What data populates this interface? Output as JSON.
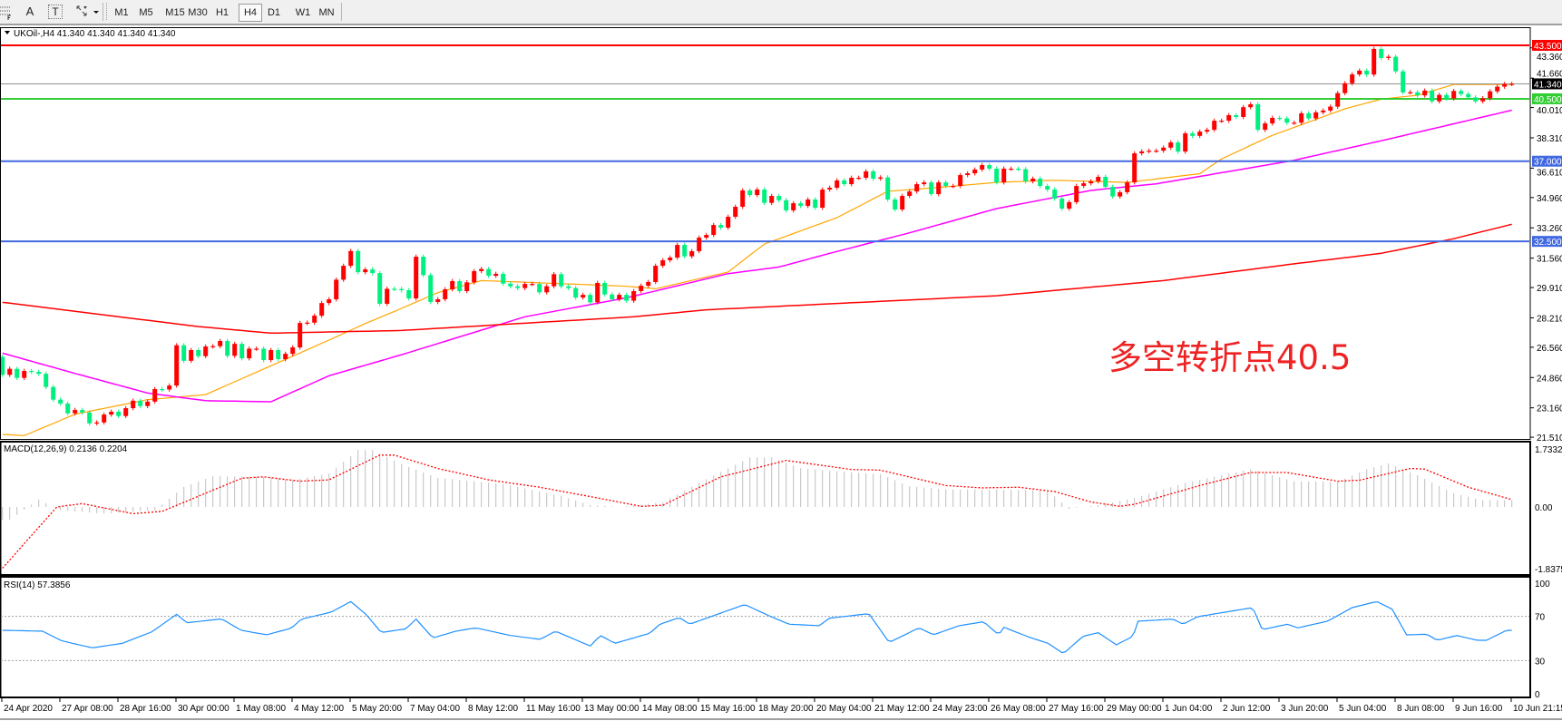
{
  "toolbar": {
    "icons": [
      "fibonacci-icon",
      "text-a-icon",
      "text-label-icon",
      "arrows-icon",
      "dropdown-icon"
    ],
    "text_a": "A",
    "text_t": "T",
    "timeframes": [
      "M1",
      "M5",
      "M15",
      "M30",
      "H1",
      "H4",
      "D1",
      "W1",
      "MN"
    ],
    "active_timeframe": "H4"
  },
  "chart": {
    "title": "UKOil-,H4  41.340 41.340 41.340 41.340",
    "price_ticks": [
      "43.360",
      "41.660",
      "40.010",
      "38.310",
      "36.610",
      "34.960",
      "33.260",
      "31.560",
      "29.910",
      "28.210",
      "26.560",
      "24.860",
      "23.160",
      "21.510"
    ],
    "time_labels": [
      "24 Apr 2020",
      "27 Apr 08:00",
      "28 Apr 16:00",
      "30 Apr 00:00",
      "1 May 08:00",
      "4 May 12:00",
      "5 May 20:00",
      "7 May 04:00",
      "8 May 12:00",
      "11 May 16:00",
      "13 May 00:00",
      "14 May 08:00",
      "15 May 16:00",
      "18 May 20:00",
      "20 May 04:00",
      "21 May 12:00",
      "24 May 23:00",
      "26 May 08:00",
      "27 May 16:00",
      "29 May 00:00",
      "1 Jun 04:00",
      "2 Jun 12:00",
      "3 Jun 20:00",
      "5 Jun 04:00",
      "8 Jun 08:00",
      "9 Jun 16:00",
      "10 Jun 21:15"
    ],
    "annotation": "多空转折点40.5",
    "annotation_color": "#ee2222",
    "levels": [
      {
        "price": 43.5,
        "label": "43.500",
        "color": "#ff0000"
      },
      {
        "price": 41.34,
        "label": "41.340",
        "color": "#000000",
        "line_color": "#909090"
      },
      {
        "price": 40.5,
        "label": "40.500",
        "color": "#32cd32"
      },
      {
        "price": 37.0,
        "label": "37.000",
        "color": "#4169e1"
      },
      {
        "price": 32.5,
        "label": "32.500",
        "color": "#4169e1"
      }
    ],
    "up_color": "#ff0000",
    "down_color": "#00f080"
  },
  "macd": {
    "label": "MACD(12,26,9) 0.2136 0.2204",
    "ticks": [
      "1.7332",
      "0.00",
      "-1.8375"
    ]
  },
  "rsi": {
    "label": "RSI(14) 57.3856",
    "ticks": [
      "100",
      "70",
      "30",
      "0"
    ]
  },
  "chart_data": [
    {
      "type": "candlestick",
      "symbol": "UKOil-",
      "timeframe": "H4",
      "ylim": [
        21.51,
        43.5
      ],
      "first_open": 26.02,
      "closes": [
        25.01,
        25.35,
        24.84,
        25.23,
        25.18,
        25.07,
        24.33,
        23.62,
        23.4,
        22.85,
        23.04,
        22.9,
        22.29,
        22.34,
        22.78,
        22.94,
        22.7,
        23.14,
        23.56,
        23.26,
        23.51,
        24.21,
        24.19,
        24.41,
        26.67,
        25.8,
        26.4,
        26.06,
        26.6,
        26.62,
        26.91,
        26.08,
        26.75,
        25.94,
        26.48,
        26.48,
        25.84,
        26.4,
        25.89,
        26.19,
        26.55,
        27.92,
        27.94,
        28.33,
        29.04,
        29.25,
        30.35,
        31.13,
        31.96,
        30.77,
        30.93,
        30.72,
        29.0,
        29.84,
        29.83,
        29.76,
        29.3,
        31.64,
        30.61,
        29.1,
        29.25,
        29.81,
        30.27,
        29.71,
        30.2,
        30.83,
        30.95,
        30.57,
        30.68,
        30.13,
        29.98,
        29.88,
        30.11,
        30.11,
        29.64,
        29.98,
        30.66,
        29.98,
        29.88,
        29.35,
        29.5,
        29.08,
        30.17,
        29.52,
        29.25,
        29.5,
        29.17,
        29.71,
        30.01,
        30.22,
        31.13,
        31.44,
        31.59,
        32.3,
        31.66,
        31.95,
        32.71,
        32.86,
        33.42,
        33.27,
        33.88,
        34.44,
        35.36,
        35.1,
        35.41,
        34.66,
        35.05,
        34.81,
        34.24,
        34.64,
        34.49,
        34.85,
        34.39,
        35.41,
        35.51,
        35.92,
        35.71,
        36.07,
        36.07,
        36.43,
        36.02,
        36.09,
        34.85,
        34.29,
        35.05,
        35.3,
        35.71,
        35.81,
        35.15,
        35.81,
        35.61,
        35.61,
        36.22,
        36.32,
        36.53,
        36.78,
        36.58,
        35.81,
        36.58,
        36.58,
        36.55,
        35.87,
        36.02,
        35.61,
        35.41,
        34.9,
        34.34,
        34.7,
        35.61,
        35.76,
        35.87,
        36.12,
        35.56,
        35.02,
        35.26,
        35.81,
        37.44,
        37.55,
        37.59,
        37.59,
        37.76,
        38.05,
        37.54,
        38.56,
        38.42,
        38.66,
        38.76,
        39.27,
        39.27,
        39.58,
        39.48,
        40.03,
        40.19,
        38.76,
        39.12,
        39.43,
        39.4,
        39.16,
        39.16,
        39.69,
        39.4,
        39.74,
        39.84,
        40.06,
        40.82,
        41.37,
        41.87,
        42.08,
        41.86,
        43.3,
        42.79,
        42.86,
        42.04,
        40.86,
        40.87,
        40.69,
        40.96,
        40.36,
        40.72,
        40.52,
        40.94,
        40.77,
        40.58,
        40.36,
        40.53,
        40.92,
        41.18,
        41.33,
        41.34
      ],
      "moving_averages": [
        {
          "color": "#ffa500",
          "points": [
            [
              0,
              21.67
            ],
            [
              3,
              21.6
            ],
            [
              10,
              22.8
            ],
            [
              20,
              23.62
            ],
            [
              28,
              23.9
            ],
            [
              37,
              25.52
            ],
            [
              45,
              26.96
            ],
            [
              50,
              27.89
            ],
            [
              55,
              28.74
            ],
            [
              60,
              29.62
            ],
            [
              66,
              30.3
            ],
            [
              80,
              30.08
            ],
            [
              86,
              29.98
            ],
            [
              90,
              29.84
            ],
            [
              100,
              30.78
            ],
            [
              105,
              32.35
            ],
            [
              115,
              33.83
            ],
            [
              122,
              35.31
            ],
            [
              130,
              35.56
            ],
            [
              137,
              35.81
            ],
            [
              145,
              35.93
            ],
            [
              155,
              35.81
            ],
            [
              159,
              36.0
            ],
            [
              165,
              36.3
            ],
            [
              168,
              37.13
            ],
            [
              175,
              38.45
            ],
            [
              185,
              39.94
            ],
            [
              190,
              40.48
            ],
            [
              195,
              40.7
            ],
            [
              200,
              41.3
            ],
            [
              208,
              41.3
            ]
          ]
        },
        {
          "color": "#ff00ff",
          "points": [
            [
              0,
              26.23
            ],
            [
              10,
              25.09
            ],
            [
              20,
              23.99
            ],
            [
              28,
              23.56
            ],
            [
              37,
              23.5
            ],
            [
              45,
              24.96
            ],
            [
              55,
              26.14
            ],
            [
              72,
              28.27
            ],
            [
              86,
              29.33
            ],
            [
              100,
              30.69
            ],
            [
              107,
              31.06
            ],
            [
              114,
              31.83
            ],
            [
              125,
              32.98
            ],
            [
              137,
              34.34
            ],
            [
              150,
              35.36
            ],
            [
              159,
              35.73
            ],
            [
              172,
              36.63
            ],
            [
              178,
              37.05
            ],
            [
              191,
              38.24
            ],
            [
              208,
              39.86
            ]
          ]
        },
        {
          "color": "#ff0000",
          "points": [
            [
              0,
              29.08
            ],
            [
              27,
              27.72
            ],
            [
              37,
              27.35
            ],
            [
              55,
              27.5
            ],
            [
              87,
              28.27
            ],
            [
              97,
              28.66
            ],
            [
              137,
              29.45
            ],
            [
              160,
              30.3
            ],
            [
              178,
              31.24
            ],
            [
              190,
              31.83
            ],
            [
              200,
              32.65
            ],
            [
              208,
              33.46
            ]
          ]
        }
      ]
    },
    {
      "type": "bar+line",
      "name": "MACD(12,26,9)",
      "ylim": [
        -1.8375,
        1.7332
      ],
      "histogram_points": [
        [
          1,
          -0.38
        ],
        [
          5,
          0.22
        ],
        [
          8,
          -0.1
        ],
        [
          14,
          -0.2
        ],
        [
          21,
          -0.1
        ],
        [
          25,
          0.6
        ],
        [
          29,
          0.92
        ],
        [
          36,
          0.9
        ],
        [
          40,
          0.8
        ],
        [
          45,
          1.0
        ],
        [
          49,
          1.7
        ],
        [
          51,
          1.7
        ],
        [
          55,
          1.28
        ],
        [
          60,
          0.87
        ],
        [
          69,
          0.69
        ],
        [
          77,
          0.33
        ],
        [
          81,
          0.06
        ],
        [
          85,
          0.0
        ],
        [
          91,
          0.14
        ],
        [
          96,
          0.72
        ],
        [
          103,
          1.48
        ],
        [
          106,
          1.48
        ],
        [
          110,
          1.16
        ],
        [
          115,
          1.07
        ],
        [
          121,
          0.98
        ],
        [
          125,
          0.62
        ],
        [
          130,
          0.53
        ],
        [
          144,
          0.5
        ],
        [
          147,
          -0.05
        ],
        [
          151,
          0.05
        ],
        [
          156,
          0.27
        ],
        [
          163,
          0.72
        ],
        [
          172,
          1.13
        ],
        [
          178,
          0.77
        ],
        [
          184,
          0.75
        ],
        [
          188,
          1.13
        ],
        [
          191,
          1.3
        ],
        [
          195,
          0.95
        ],
        [
          200,
          0.41
        ],
        [
          204,
          0.2
        ],
        [
          208,
          0.21
        ]
      ],
      "signal_points": [
        [
          0,
          -1.83
        ],
        [
          7.5,
          0
        ],
        [
          11,
          0.1
        ],
        [
          18,
          -0.2
        ],
        [
          22,
          -0.13
        ],
        [
          33,
          0.86
        ],
        [
          36,
          0.9
        ],
        [
          41,
          0.77
        ],
        [
          45,
          0.81
        ],
        [
          52,
          1.55
        ],
        [
          54,
          1.55
        ],
        [
          60,
          1.15
        ],
        [
          67,
          0.81
        ],
        [
          74,
          0.59
        ],
        [
          82,
          0.27
        ],
        [
          88,
          0.02
        ],
        [
          91,
          0.05
        ],
        [
          99,
          0.9
        ],
        [
          108,
          1.39
        ],
        [
          117,
          1.12
        ],
        [
          121,
          1.1
        ],
        [
          130,
          0.64
        ],
        [
          135,
          0.57
        ],
        [
          140,
          0.59
        ],
        [
          145,
          0.46
        ],
        [
          150,
          0.15
        ],
        [
          154,
          0.02
        ],
        [
          156,
          0.08
        ],
        [
          165,
          0.64
        ],
        [
          172,
          1.03
        ],
        [
          177,
          1.03
        ],
        [
          184,
          0.77
        ],
        [
          187,
          0.8
        ],
        [
          194,
          1.15
        ],
        [
          196,
          1.13
        ],
        [
          202,
          0.59
        ],
        [
          208,
          0.22
        ]
      ],
      "signal_color": "#ff0000",
      "histogram_color": "#c0c0c0"
    },
    {
      "type": "line",
      "name": "RSI(14)",
      "ylim": [
        0,
        100
      ],
      "levels": [
        70,
        30
      ],
      "color": "#1e90ff",
      "points": [
        [
          0,
          57.4
        ],
        [
          5.5,
          56.6
        ],
        [
          8.2,
          47.8
        ],
        [
          12.4,
          41.5
        ],
        [
          16.5,
          45.6
        ],
        [
          20.6,
          56
        ],
        [
          24,
          71.8
        ],
        [
          25.4,
          64.2
        ],
        [
          30.2,
          67.7
        ],
        [
          32.9,
          57.4
        ],
        [
          36.4,
          53.3
        ],
        [
          39.8,
          59.3
        ],
        [
          41.2,
          67.5
        ],
        [
          45.3,
          73.8
        ],
        [
          48,
          83.4
        ],
        [
          50.1,
          71.8
        ],
        [
          52.2,
          55.4
        ],
        [
          55.6,
          58.7
        ],
        [
          57,
          67.5
        ],
        [
          59.3,
          50.5
        ],
        [
          62.5,
          56.6
        ],
        [
          65.2,
          59.6
        ],
        [
          70,
          52.7
        ],
        [
          74.1,
          49.2
        ],
        [
          76.2,
          56.6
        ],
        [
          81,
          43.2
        ],
        [
          82.4,
          52.7
        ],
        [
          84.4,
          45.6
        ],
        [
          89.2,
          54.7
        ],
        [
          90.6,
          62.9
        ],
        [
          93.3,
          68.9
        ],
        [
          94.7,
          62.9
        ],
        [
          102.3,
          80.7
        ],
        [
          105.7,
          70.3
        ],
        [
          108.4,
          62.9
        ],
        [
          112.6,
          61.5
        ],
        [
          113.9,
          68.3
        ],
        [
          119.4,
          72.4
        ],
        [
          122.2,
          46.4
        ],
        [
          126.3,
          59.6
        ],
        [
          128.3,
          53.3
        ],
        [
          131.8,
          61.5
        ],
        [
          135.2,
          65.1
        ],
        [
          137.3,
          53.3
        ],
        [
          138,
          60.1
        ],
        [
          141.4,
          51.4
        ],
        [
          144.1,
          45.6
        ],
        [
          146.2,
          36.3
        ],
        [
          148.9,
          51.9
        ],
        [
          151,
          55.2
        ],
        [
          153.5,
          44.3
        ],
        [
          155.8,
          51.9
        ],
        [
          156.5,
          65.6
        ],
        [
          161.3,
          67.5
        ],
        [
          162.7,
          62.9
        ],
        [
          164.7,
          69.7
        ],
        [
          172.3,
          77.9
        ],
        [
          173.6,
          58
        ],
        [
          177.1,
          62.9
        ],
        [
          178.5,
          59.6
        ],
        [
          182.6,
          65.6
        ],
        [
          186,
          77.9
        ],
        [
          189.4,
          83.4
        ],
        [
          191.5,
          76.5
        ],
        [
          193.5,
          53.3
        ],
        [
          196.3,
          53.8
        ],
        [
          197.7,
          48.4
        ],
        [
          200.4,
          52.7
        ],
        [
          203.2,
          48.4
        ],
        [
          204.5,
          48.4
        ],
        [
          207.3,
          57.4
        ],
        [
          208,
          57.39
        ]
      ]
    }
  ]
}
